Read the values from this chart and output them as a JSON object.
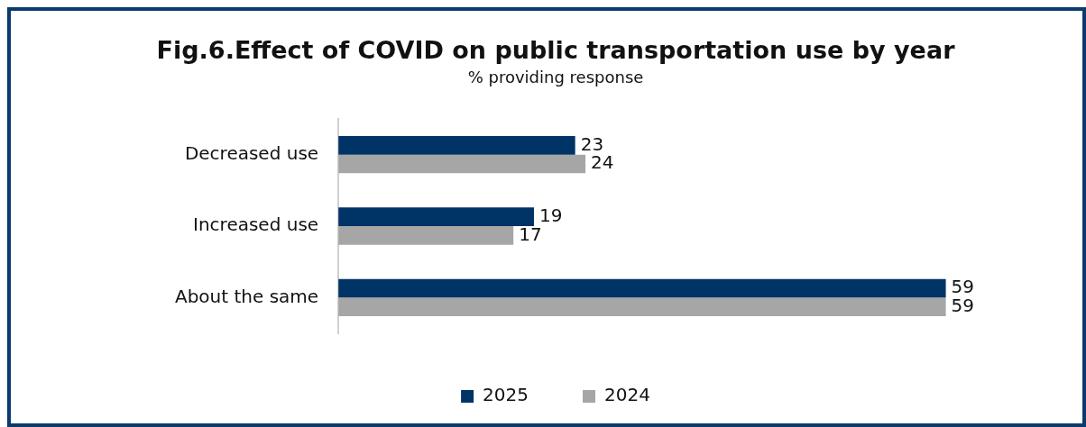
{
  "chart_data": {
    "type": "bar",
    "orientation": "horizontal",
    "title": "Fig.6.Effect of COVID on public transportation use by year",
    "subtitle": "% providing response",
    "categories": [
      "Decreased use",
      "Increased use",
      "About the same"
    ],
    "series": [
      {
        "name": "2025",
        "color": "#003366",
        "values": [
          23,
          19,
          59
        ]
      },
      {
        "name": "2024",
        "color": "#a6a6a6",
        "values": [
          24,
          17,
          59
        ]
      }
    ],
    "data_labels": true,
    "legend": "bottom",
    "grid": false
  }
}
